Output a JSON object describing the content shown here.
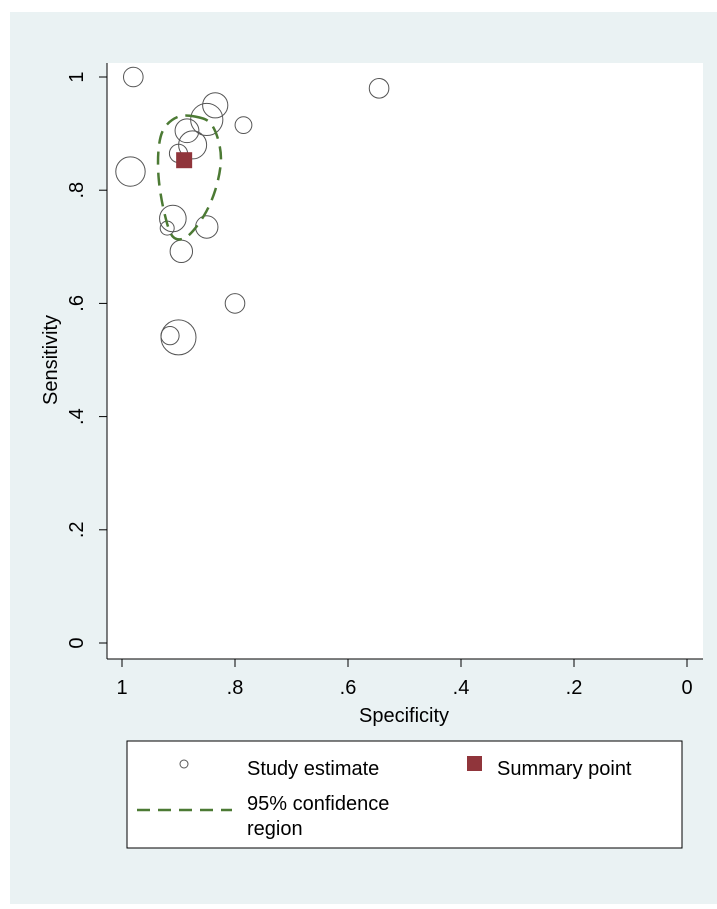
{
  "chart_data": {
    "type": "scatter",
    "xlabel": "Specificity",
    "ylabel": "Sensitivity",
    "xlim": [
      1.0,
      0.0
    ],
    "ylim": [
      0.0,
      1.0
    ],
    "x_reversed": true,
    "x_ticks": [
      1,
      0.8,
      0.6,
      0.4,
      0.2,
      0
    ],
    "x_tick_labels": [
      "1",
      ".8",
      ".6",
      ".4",
      ".2",
      "0"
    ],
    "y_ticks": [
      0,
      0.2,
      0.4,
      0.6,
      0.8,
      1
    ],
    "y_tick_labels": [
      "0",
      ".2",
      ".4",
      ".6",
      ".8",
      "1"
    ],
    "grid": false,
    "legend_position": "bottom",
    "series": [
      {
        "name": "Study estimate",
        "marker": "hollow-circle",
        "points": [
          {
            "specificity": 0.98,
            "sensitivity": 1.0,
            "weight": 0.45
          },
          {
            "specificity": 0.545,
            "sensitivity": 0.98,
            "weight": 0.45
          },
          {
            "specificity": 0.835,
            "sensitivity": 0.95,
            "weight": 0.65
          },
          {
            "specificity": 0.85,
            "sensitivity": 0.925,
            "weight": 0.9
          },
          {
            "specificity": 0.785,
            "sensitivity": 0.915,
            "weight": 0.35
          },
          {
            "specificity": 0.885,
            "sensitivity": 0.905,
            "weight": 0.6
          },
          {
            "specificity": 0.875,
            "sensitivity": 0.88,
            "weight": 0.75
          },
          {
            "specificity": 0.9,
            "sensitivity": 0.865,
            "weight": 0.4
          },
          {
            "specificity": 0.985,
            "sensitivity": 0.833,
            "weight": 0.8
          },
          {
            "specificity": 0.91,
            "sensitivity": 0.75,
            "weight": 0.7
          },
          {
            "specificity": 0.85,
            "sensitivity": 0.735,
            "weight": 0.55
          },
          {
            "specificity": 0.92,
            "sensitivity": 0.733,
            "weight": 0.25
          },
          {
            "specificity": 0.895,
            "sensitivity": 0.692,
            "weight": 0.55
          },
          {
            "specificity": 0.8,
            "sensitivity": 0.6,
            "weight": 0.45
          },
          {
            "specificity": 0.9,
            "sensitivity": 0.54,
            "weight": 1.0
          },
          {
            "specificity": 0.915,
            "sensitivity": 0.543,
            "weight": 0.4
          }
        ]
      },
      {
        "name": "Summary point",
        "marker": "filled-square",
        "points": [
          {
            "specificity": 0.89,
            "sensitivity": 0.853
          }
        ]
      },
      {
        "name": "95% confidence region",
        "marker": "dashed-line",
        "points": [
          {
            "specificity": 0.87,
            "sensitivity": 0.93
          },
          {
            "specificity": 0.845,
            "sensitivity": 0.92
          },
          {
            "specificity": 0.83,
            "sensitivity": 0.89
          },
          {
            "specificity": 0.825,
            "sensitivity": 0.85
          },
          {
            "specificity": 0.835,
            "sensitivity": 0.8
          },
          {
            "specificity": 0.855,
            "sensitivity": 0.755
          },
          {
            "specificity": 0.885,
            "sensitivity": 0.718
          },
          {
            "specificity": 0.91,
            "sensitivity": 0.718
          },
          {
            "specificity": 0.925,
            "sensitivity": 0.76
          },
          {
            "specificity": 0.935,
            "sensitivity": 0.82
          },
          {
            "specificity": 0.935,
            "sensitivity": 0.875
          },
          {
            "specificity": 0.925,
            "sensitivity": 0.91
          },
          {
            "specificity": 0.9,
            "sensitivity": 0.93
          }
        ]
      }
    ],
    "legend": {
      "study_label": "Study estimate",
      "summary_label": "Summary point",
      "region_label_line1": "95% confidence",
      "region_label_line2": "region"
    },
    "colors": {
      "background": "#eaf2f3",
      "plot_background": "#ffffff",
      "study_marker": "#555555",
      "summary_marker": "#90353b",
      "confidence_region": "#4c7a34"
    }
  }
}
